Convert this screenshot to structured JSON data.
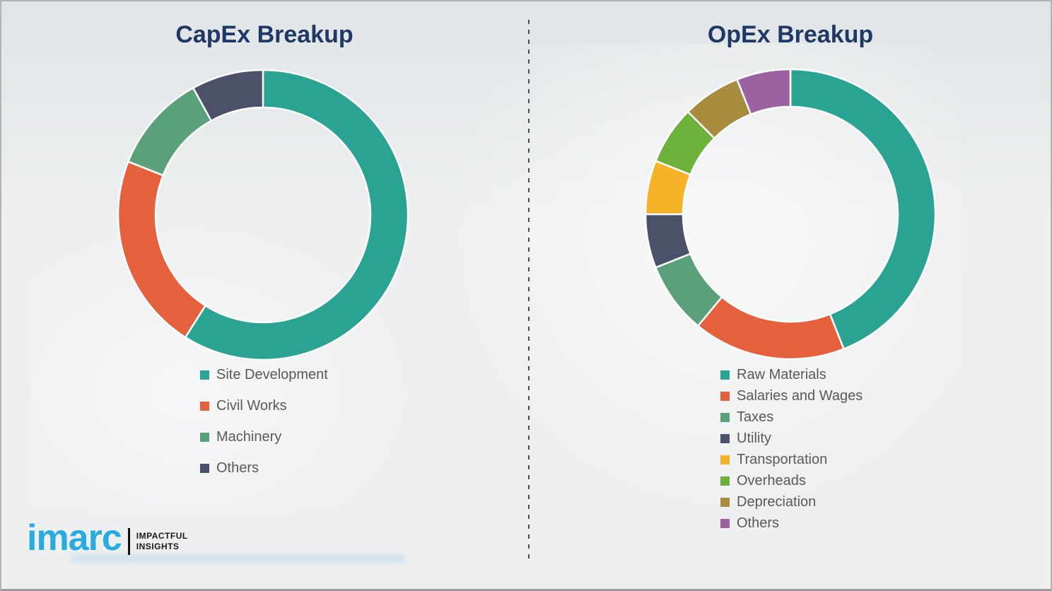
{
  "page": {
    "background": "#edeff0",
    "title_color": "#1f3864",
    "legend_text_color": "#595959",
    "divider_color": "#4a4a4a"
  },
  "logo": {
    "brand": "imarc",
    "brand_color": "#29abe2",
    "tagline_line1": "IMPACTFUL",
    "tagline_line2": "INSIGHTS"
  },
  "chart_data": [
    {
      "id": "capex",
      "type": "pie",
      "variant": "donut",
      "title": "CapEx Breakup",
      "unit": "percent_estimated_from_arc_angles",
      "start_angle_deg": 0,
      "direction": "clockwise",
      "legend_position": "below-left",
      "categories": [
        "Site Development",
        "Civil Works",
        "Machinery",
        "Others"
      ],
      "values": [
        59,
        22,
        11,
        8
      ],
      "colors": [
        "#2aa392",
        "#e5613d",
        "#5aa078",
        "#4b5169"
      ]
    },
    {
      "id": "opex",
      "type": "pie",
      "variant": "donut",
      "title": "OpEx Breakup",
      "unit": "percent_estimated_from_arc_angles",
      "start_angle_deg": 0,
      "direction": "clockwise",
      "legend_position": "below-left",
      "categories": [
        "Raw Materials",
        "Salaries and Wages",
        "Taxes",
        "Utility",
        "Transportation",
        "Overheads",
        "Depreciation",
        "Others"
      ],
      "values": [
        44,
        17,
        8,
        6,
        6,
        6.5,
        6.5,
        6
      ],
      "colors": [
        "#2aa392",
        "#e5613d",
        "#5aa078",
        "#4b5169",
        "#f6b32a",
        "#6cb13a",
        "#a98b3d",
        "#9c61a0"
      ]
    }
  ]
}
